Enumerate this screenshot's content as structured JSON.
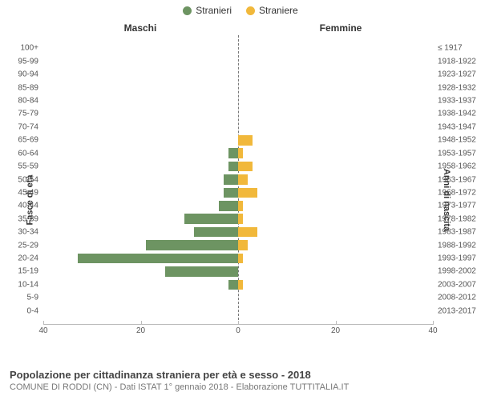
{
  "legend": {
    "male": {
      "label": "Stranieri",
      "color": "#6d9462"
    },
    "female": {
      "label": "Straniere",
      "color": "#f1b83b"
    }
  },
  "headers": {
    "male": "Maschi",
    "female": "Femmine"
  },
  "axis_labels": {
    "left": "Fasce di età",
    "right": "Anni di nascita"
  },
  "x": {
    "max": 40,
    "ticks": [
      40,
      20,
      0,
      20,
      40
    ]
  },
  "rows": [
    {
      "age": "0-4",
      "yr": "2013-2017",
      "m": 0,
      "f": 0
    },
    {
      "age": "5-9",
      "yr": "2008-2012",
      "m": 0,
      "f": 0
    },
    {
      "age": "10-14",
      "yr": "2003-2007",
      "m": 2,
      "f": 1
    },
    {
      "age": "15-19",
      "yr": "1998-2002",
      "m": 15,
      "f": 0
    },
    {
      "age": "20-24",
      "yr": "1993-1997",
      "m": 33,
      "f": 1
    },
    {
      "age": "25-29",
      "yr": "1988-1992",
      "m": 19,
      "f": 2
    },
    {
      "age": "30-34",
      "yr": "1983-1987",
      "m": 9,
      "f": 4
    },
    {
      "age": "35-39",
      "yr": "1978-1982",
      "m": 11,
      "f": 1
    },
    {
      "age": "40-44",
      "yr": "1973-1977",
      "m": 4,
      "f": 1
    },
    {
      "age": "45-49",
      "yr": "1968-1972",
      "m": 3,
      "f": 4
    },
    {
      "age": "50-54",
      "yr": "1963-1967",
      "m": 3,
      "f": 2
    },
    {
      "age": "55-59",
      "yr": "1958-1962",
      "m": 2,
      "f": 3
    },
    {
      "age": "60-64",
      "yr": "1953-1957",
      "m": 2,
      "f": 1
    },
    {
      "age": "65-69",
      "yr": "1948-1952",
      "m": 0,
      "f": 3
    },
    {
      "age": "70-74",
      "yr": "1943-1947",
      "m": 0,
      "f": 0
    },
    {
      "age": "75-79",
      "yr": "1938-1942",
      "m": 0,
      "f": 0
    },
    {
      "age": "80-84",
      "yr": "1933-1937",
      "m": 0,
      "f": 0
    },
    {
      "age": "85-89",
      "yr": "1928-1932",
      "m": 0,
      "f": 0
    },
    {
      "age": "90-94",
      "yr": "1923-1927",
      "m": 0,
      "f": 0
    },
    {
      "age": "95-99",
      "yr": "1918-1922",
      "m": 0,
      "f": 0
    },
    {
      "age": "100+",
      "yr": "≤ 1917",
      "m": 0,
      "f": 0
    }
  ],
  "colors": {
    "male_bar": "#6d9462",
    "female_bar": "#f1b83b",
    "background": "#ffffff",
    "grid": "#bbbbbb",
    "text": "#555555"
  },
  "footer": {
    "title": "Popolazione per cittadinanza straniera per età e sesso - 2018",
    "subtitle": "COMUNE DI RODDI (CN) - Dati ISTAT 1° gennaio 2018 - Elaborazione TUTTITALIA.IT"
  }
}
